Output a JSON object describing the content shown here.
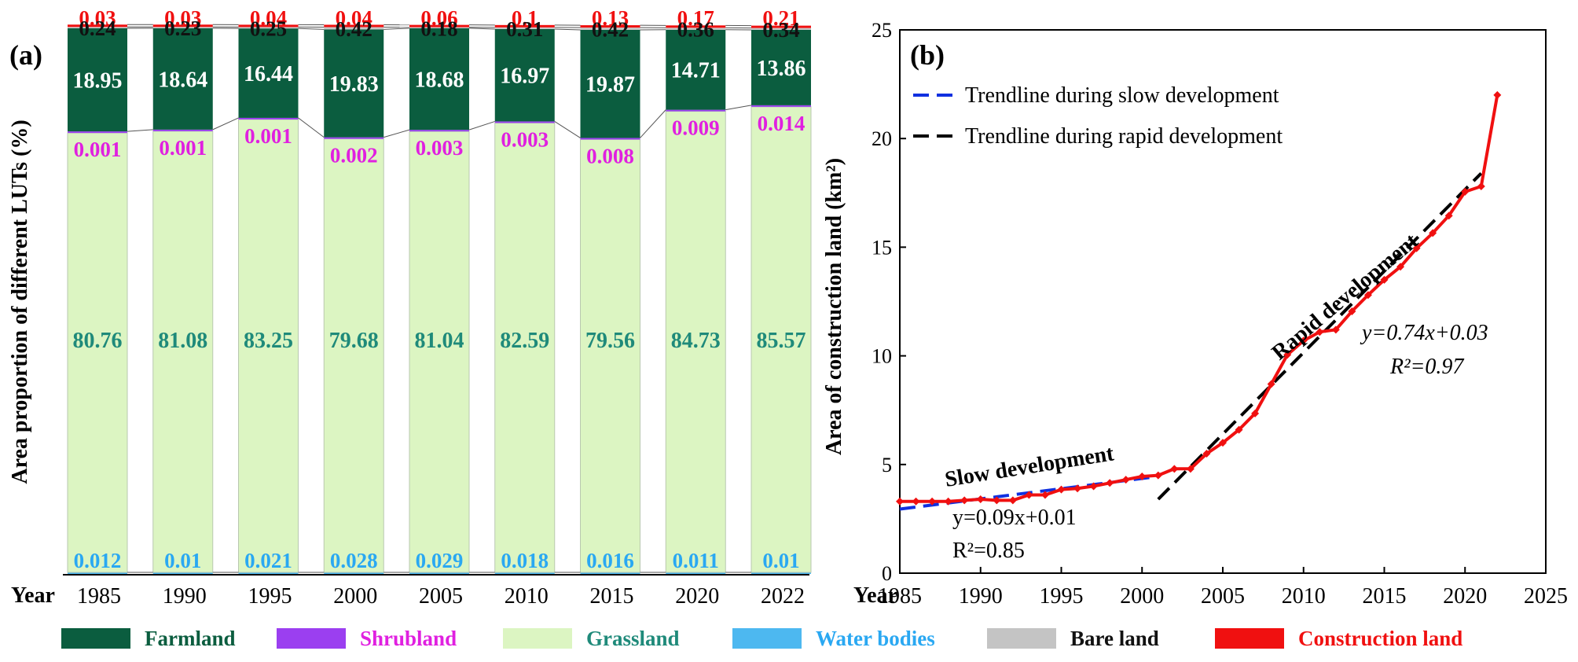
{
  "chart_data": [
    {
      "panel": "(a)",
      "type": "bar",
      "stacked": true,
      "ylabel": "Area proportion of different LUTs (%)",
      "xlabel": "Year",
      "categories": [
        "1985",
        "1990",
        "1995",
        "2000",
        "2005",
        "2010",
        "2015",
        "2020",
        "2022"
      ],
      "series": [
        {
          "name": "Water bodies",
          "color": "#4db8f0",
          "values": [
            0.012,
            0.01,
            0.021,
            0.028,
            0.029,
            0.018,
            0.016,
            0.011,
            0.01
          ],
          "labels": [
            "0.012",
            "0.01",
            "0.021",
            "0.028",
            "0.029",
            "0.018",
            "0.016",
            "0.011",
            "0.01"
          ]
        },
        {
          "name": "Grassland",
          "color": "#dcf5c2",
          "values": [
            80.76,
            81.08,
            83.25,
            79.68,
            81.04,
            82.59,
            79.56,
            84.73,
            85.57
          ],
          "labels": [
            "80.76",
            "81.08",
            "83.25",
            "79.68",
            "81.04",
            "82.59",
            "79.56",
            "84.73",
            "85.57"
          ]
        },
        {
          "name": "Shrubland",
          "color": "#9b3ff0",
          "values": [
            0.001,
            0.001,
            0.001,
            0.002,
            0.003,
            0.003,
            0.008,
            0.009,
            0.014
          ],
          "labels": [
            "0.001",
            "0.001",
            "0.001",
            "0.002",
            "0.003",
            "0.003",
            "0.008",
            "0.009",
            "0.014"
          ]
        },
        {
          "name": "Farmland",
          "color": "#0b5d3f",
          "values": [
            18.95,
            18.64,
            16.44,
            19.83,
            18.68,
            16.97,
            19.87,
            14.71,
            13.86
          ],
          "labels": [
            "18.95",
            "18.64",
            "16.44",
            "19.83",
            "18.68",
            "16.97",
            "19.87",
            "14.71",
            "13.86"
          ]
        },
        {
          "name": "Bare land",
          "color": "#c4c4c4",
          "values": [
            0.24,
            0.23,
            0.25,
            0.42,
            0.18,
            0.31,
            0.42,
            0.36,
            0.34
          ],
          "labels": [
            "0.24",
            "0.23",
            "0.25",
            "0.42",
            "0.18",
            "0.31",
            "0.42",
            "0.36",
            "0.34"
          ]
        },
        {
          "name": "Construction land",
          "color": "#f01010",
          "values": [
            0.03,
            0.03,
            0.04,
            0.04,
            0.06,
            0.1,
            0.13,
            0.17,
            0.21
          ],
          "labels": [
            "0.03",
            "0.03",
            "0.04",
            "0.04",
            "0.06",
            "0.1",
            "0.13",
            "0.17",
            "0.21"
          ]
        }
      ],
      "label_colors": {
        "Water bodies": "#2aa8f2",
        "Grassland": "#1f8a7a",
        "Shrubland": "#e020e0",
        "Farmland": "#ffffff",
        "Bare land": "#111111",
        "Construction land": "#f01010"
      }
    },
    {
      "panel": "(b)",
      "type": "line",
      "xlabel": "Year",
      "ylabel": "Area of construction land (km²)",
      "xlim": [
        1985,
        2025
      ],
      "ylim": [
        0,
        25
      ],
      "xticks": [
        "1985",
        "1990",
        "1995",
        "2000",
        "2005",
        "2010",
        "2015",
        "2020",
        "2025"
      ],
      "yticks": [
        "0",
        "5",
        "10",
        "15",
        "20",
        "25"
      ],
      "series": [
        {
          "name": "Area of construction land",
          "color": "#f01010",
          "x": [
            1985,
            1986,
            1987,
            1988,
            1989,
            1990,
            1991,
            1992,
            1993,
            1994,
            1995,
            1996,
            1997,
            1998,
            1999,
            2000,
            2001,
            2002,
            2003,
            2004,
            2005,
            2006,
            2007,
            2008,
            2009,
            2010,
            2011,
            2012,
            2013,
            2014,
            2015,
            2016,
            2017,
            2018,
            2019,
            2020,
            2021,
            2022
          ],
          "y": [
            3.3,
            3.3,
            3.3,
            3.3,
            3.35,
            3.4,
            3.35,
            3.35,
            3.6,
            3.6,
            3.85,
            3.9,
            4.0,
            4.15,
            4.3,
            4.45,
            4.5,
            4.8,
            4.8,
            5.5,
            6.0,
            6.6,
            7.35,
            8.7,
            10.05,
            10.7,
            11.1,
            11.2,
            12.05,
            12.8,
            13.5,
            14.1,
            14.95,
            15.65,
            16.45,
            17.55,
            17.8,
            22.0
          ]
        }
      ],
      "trendlines": [
        {
          "name": "Trendline during slow development",
          "color": "#1030e0",
          "x": [
            1985,
            2001
          ],
          "y": [
            2.95,
            4.45
          ]
        },
        {
          "name": "Trendline during rapid development",
          "color": "#000000",
          "x": [
            2001,
            2021
          ],
          "y": [
            3.4,
            18.4
          ]
        }
      ],
      "annotations": {
        "panel_label": "(b)",
        "slow_label": "Slow development",
        "rapid_label": "Rapid development",
        "eq_slow": "y=0.09x+0.01",
        "r2_slow": "R²=0.85",
        "eq_rapid": "y=0.74x+0.03",
        "r2_rapid": "R²=0.97"
      }
    }
  ],
  "legend": [
    {
      "label": "Farmland",
      "swatch": "#0b5d3f",
      "text_color": "#0b5d3f"
    },
    {
      "label": "Shrubland",
      "swatch": "#9b3ff0",
      "text_color": "#e020e0"
    },
    {
      "label": "Grassland",
      "swatch": "#dcf5c2",
      "text_color": "#1f8a7a"
    },
    {
      "label": "Water bodies",
      "swatch": "#4db8f0",
      "text_color": "#2aa8f2"
    },
    {
      "label": "Bare land",
      "swatch": "#c4c4c4",
      "text_color": "#111111"
    },
    {
      "label": "Construction land",
      "swatch": "#f01010",
      "text_color": "#f01010"
    }
  ]
}
